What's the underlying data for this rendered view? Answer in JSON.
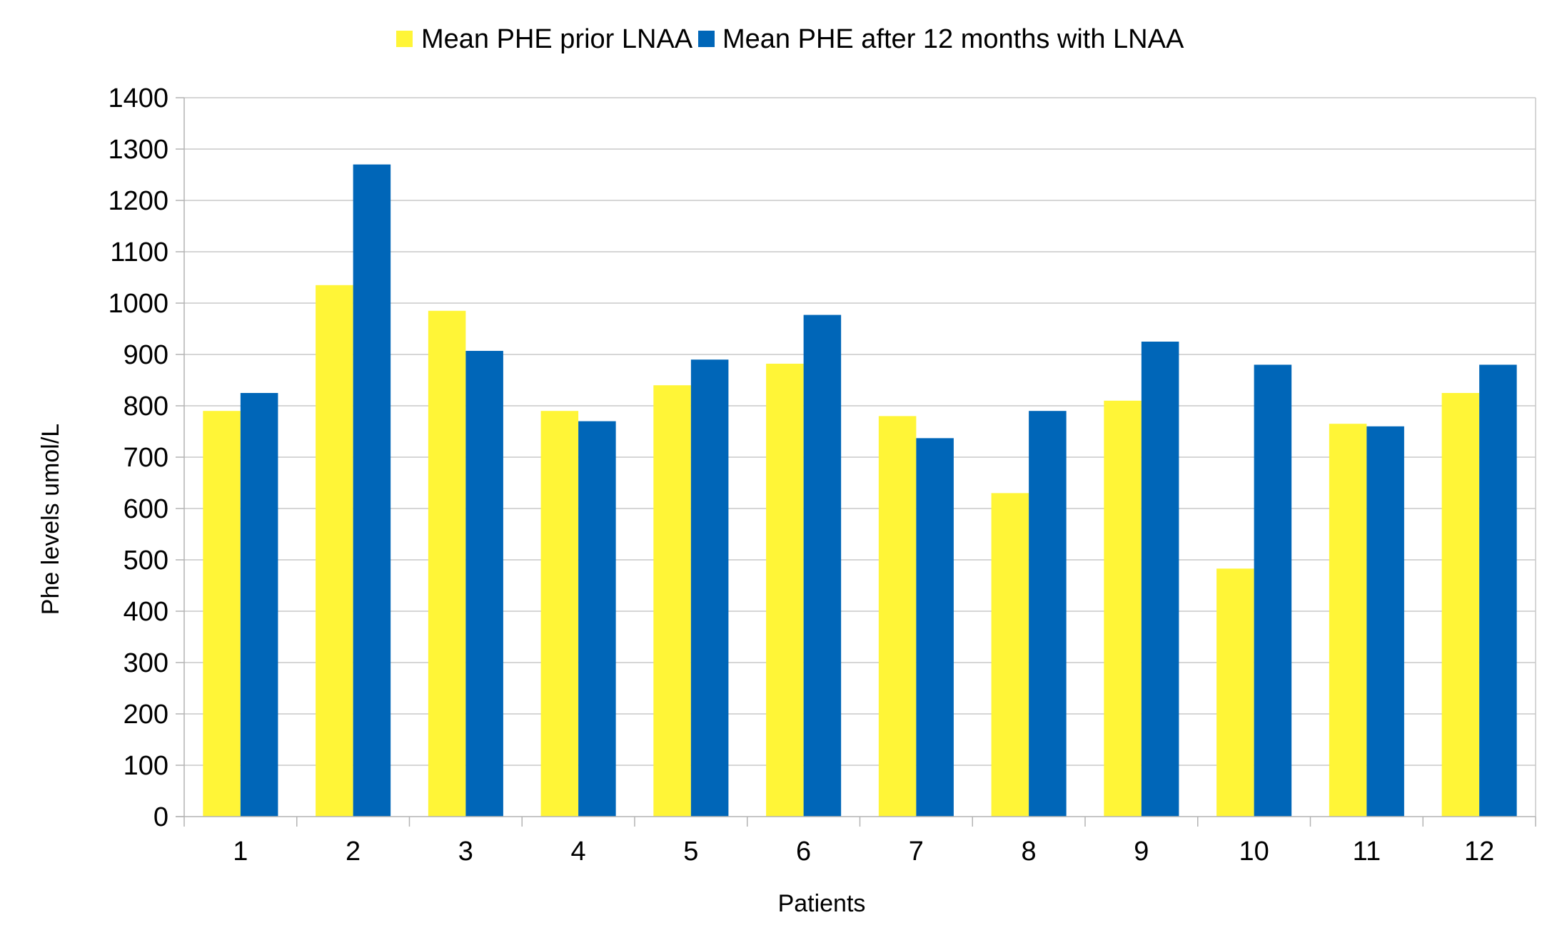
{
  "chart_data": {
    "type": "bar",
    "title": "",
    "xlabel": "Patients",
    "ylabel": "Phe levels umol/L",
    "ylim": [
      0,
      1400
    ],
    "yticks": [
      0,
      100,
      200,
      300,
      400,
      500,
      600,
      700,
      800,
      900,
      1000,
      1100,
      1200,
      1300,
      1400
    ],
    "grid": true,
    "legend_position": "top-center",
    "categories": [
      "1",
      "2",
      "3",
      "4",
      "5",
      "6",
      "7",
      "8",
      "9",
      "10",
      "11",
      "12"
    ],
    "series": [
      {
        "name": "Mean PHE prior LNAA",
        "color": "#FFF537",
        "values": [
          790,
          1035,
          985,
          790,
          840,
          882,
          780,
          630,
          810,
          483,
          765,
          825
        ]
      },
      {
        "name": "Mean PHE after 12 months with LNAA",
        "color": "#0066B8",
        "values": [
          825,
          1270,
          907,
          770,
          890,
          977,
          737,
          790,
          925,
          880,
          760,
          880
        ]
      }
    ]
  }
}
